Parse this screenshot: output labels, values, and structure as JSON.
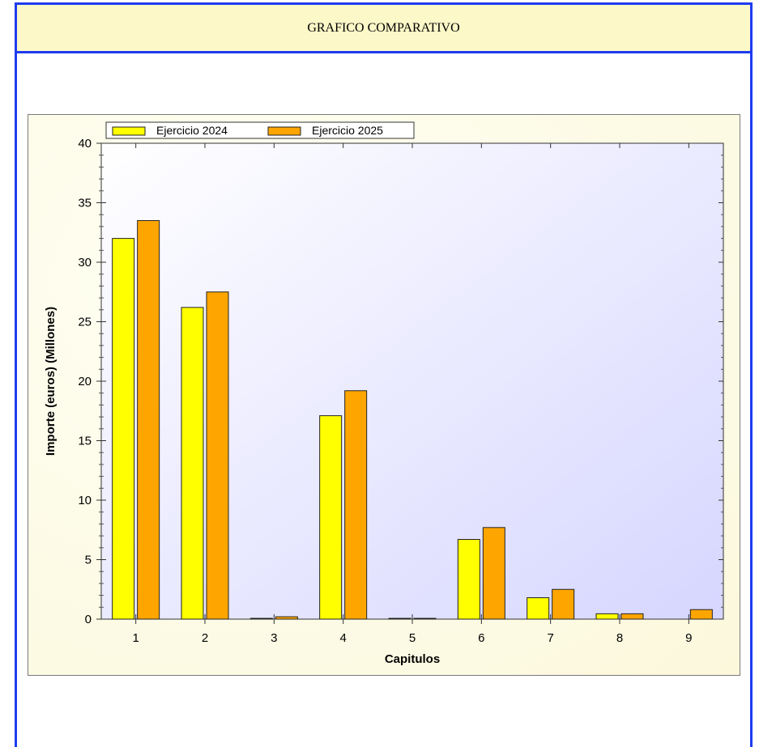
{
  "header": {
    "title": "GRAFICO COMPARATIVO"
  },
  "colors": {
    "series1": "#ffff00",
    "series2": "#ffa500",
    "frame": "#1d3cf0",
    "header_bg": "#fdf8c8"
  },
  "chart_data": {
    "type": "bar",
    "title": "",
    "xlabel": "Capitulos",
    "ylabel": "Importe (euros) (Millones)",
    "ylim": [
      0,
      40
    ],
    "yticks": [
      0,
      5,
      10,
      15,
      20,
      25,
      30,
      35,
      40
    ],
    "categories": [
      "1",
      "2",
      "3",
      "4",
      "5",
      "6",
      "7",
      "8",
      "9"
    ],
    "series": [
      {
        "name": "Ejercicio 2024",
        "values": [
          32.0,
          26.2,
          0.05,
          17.1,
          0.05,
          6.7,
          1.8,
          0.45,
          0
        ]
      },
      {
        "name": "Ejercicio 2025",
        "values": [
          33.5,
          27.5,
          0.2,
          19.2,
          0.05,
          7.7,
          2.5,
          0.45,
          0.8
        ]
      }
    ],
    "legend": "top-left",
    "grid": false
  }
}
